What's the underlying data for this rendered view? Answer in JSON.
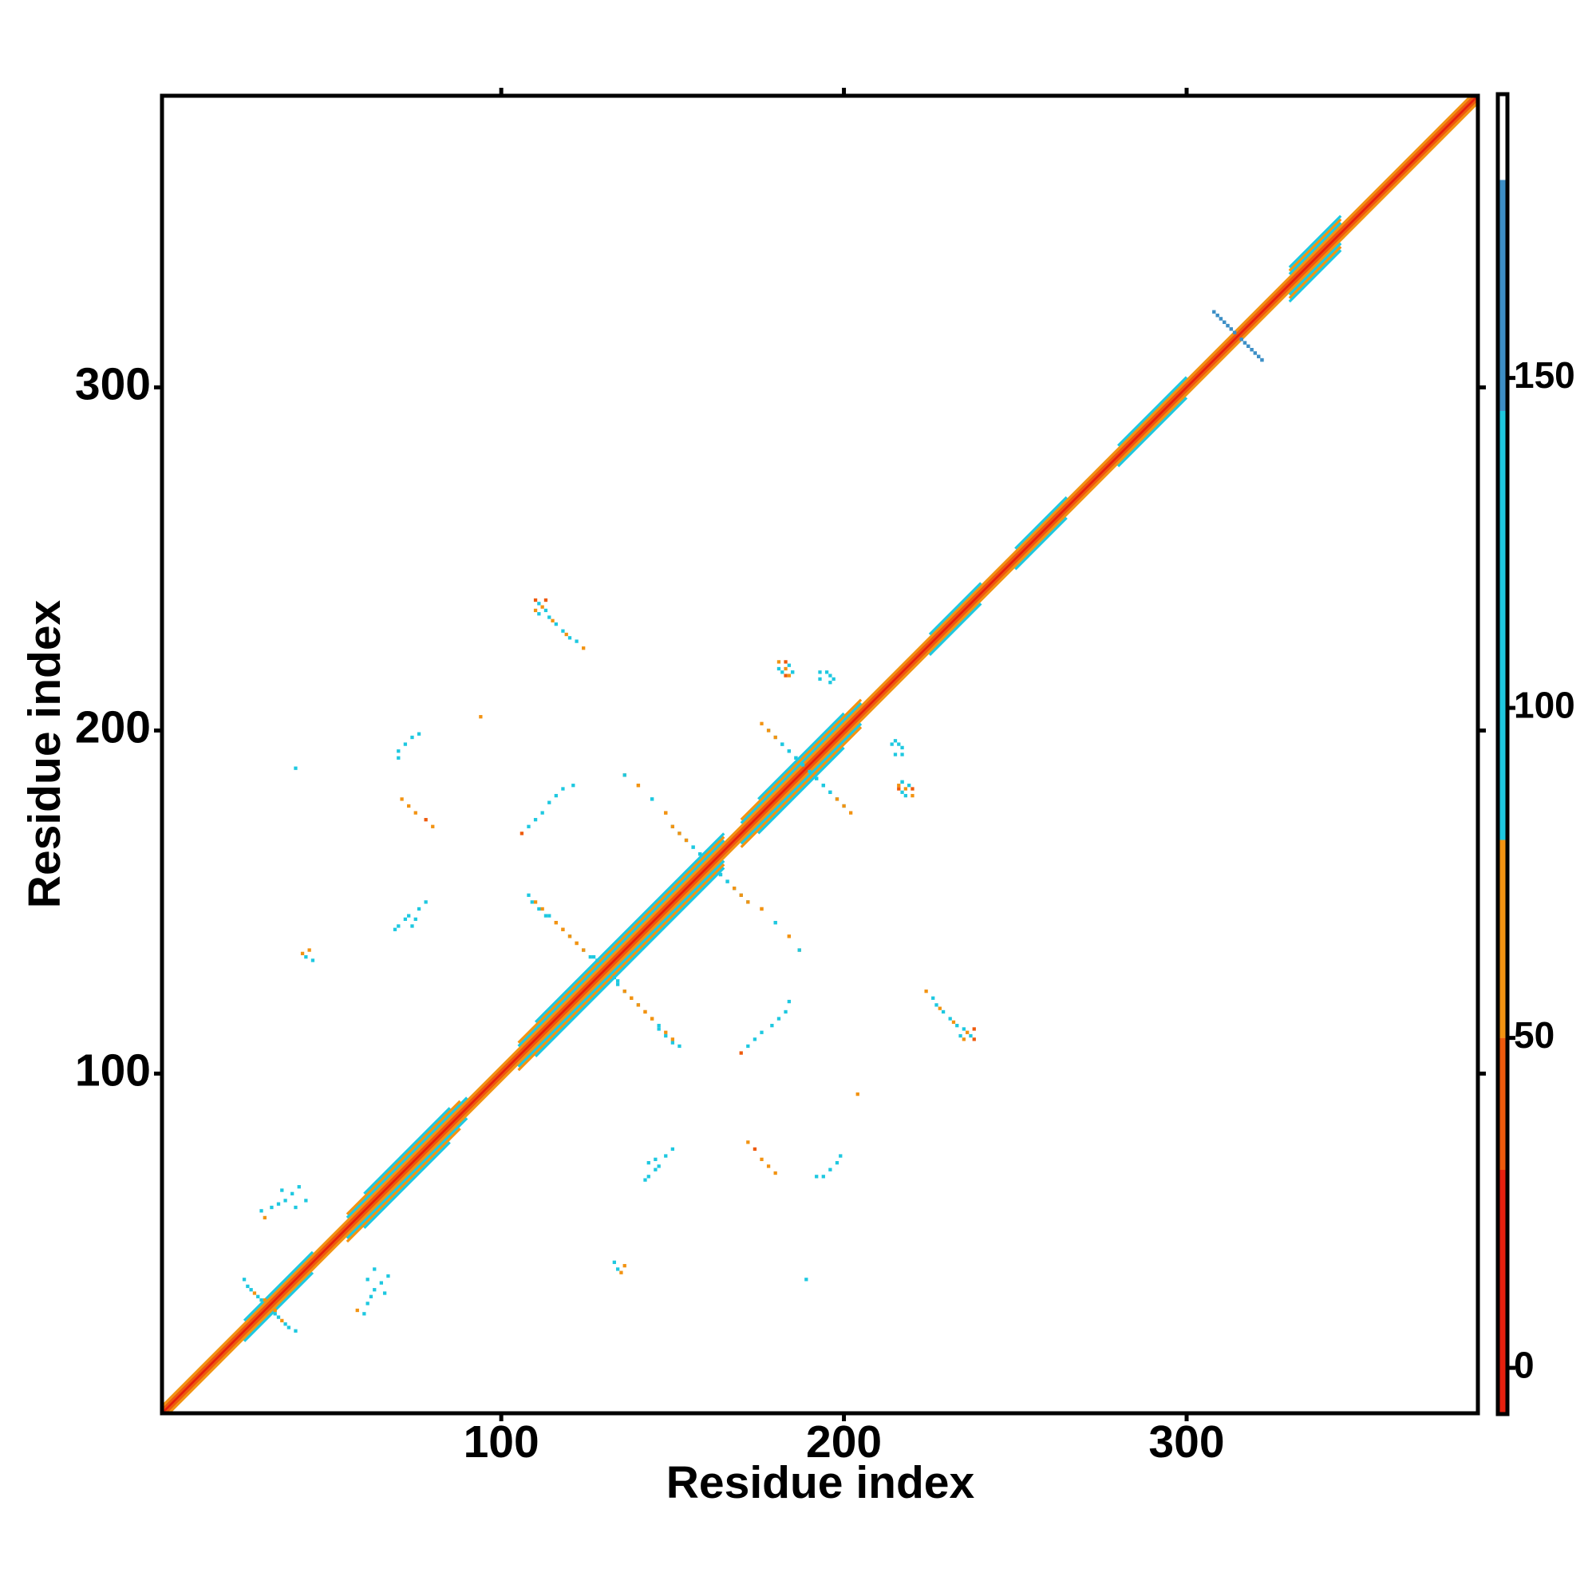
{
  "chart_data": {
    "type": "heatmap",
    "x_label": "Residue index",
    "y_label": "Residue index",
    "xlim": [
      1,
      385
    ],
    "ylim": [
      1,
      385
    ],
    "xticks": [
      100,
      200,
      300
    ],
    "yticks": [
      100,
      200,
      300
    ],
    "colorbar": {
      "lim": [
        -7,
        193
      ],
      "ticks": [
        0,
        50,
        100,
        150
      ],
      "bands": [
        {
          "from": -7,
          "to": 30,
          "color": "#e5200e"
        },
        {
          "from": 30,
          "to": 50,
          "color": "#ee5a0c"
        },
        {
          "from": 50,
          "to": 80,
          "color": "#f29312"
        },
        {
          "from": 80,
          "to": 145,
          "color": "#1ec8e0"
        },
        {
          "from": 145,
          "to": 180,
          "color": "#3d8fc6"
        },
        {
          "from": 180,
          "to": 193,
          "color": "#ffffff"
        }
      ]
    },
    "band": [
      {
        "offset": 0,
        "start": 1,
        "end": 385,
        "value": 5
      },
      {
        "offset": 1,
        "start": 1,
        "end": 384,
        "value": 40
      },
      {
        "offset": -1,
        "start": 2,
        "end": 385,
        "value": 40
      },
      {
        "offset": 2,
        "start": 1,
        "end": 383,
        "value": 60
      },
      {
        "offset": -2,
        "start": 3,
        "end": 385,
        "value": 60
      },
      {
        "offset": 3,
        "start": 25,
        "end": 45,
        "value": 100
      },
      {
        "offset": -3,
        "start": 25,
        "end": 45,
        "value": 100
      },
      {
        "offset": 3,
        "start": 55,
        "end": 90,
        "value": 100
      },
      {
        "offset": -3,
        "start": 55,
        "end": 90,
        "value": 100
      },
      {
        "offset": 3,
        "start": 105,
        "end": 165,
        "value": 100
      },
      {
        "offset": -3,
        "start": 105,
        "end": 165,
        "value": 100
      },
      {
        "offset": 3,
        "start": 170,
        "end": 205,
        "value": 100
      },
      {
        "offset": -3,
        "start": 170,
        "end": 205,
        "value": 100
      },
      {
        "offset": 3,
        "start": 225,
        "end": 240,
        "value": 100
      },
      {
        "offset": -3,
        "start": 225,
        "end": 240,
        "value": 100
      },
      {
        "offset": 3,
        "start": 250,
        "end": 265,
        "value": 100
      },
      {
        "offset": -3,
        "start": 250,
        "end": 265,
        "value": 100
      },
      {
        "offset": 3,
        "start": 280,
        "end": 300,
        "value": 100
      },
      {
        "offset": -3,
        "start": 280,
        "end": 300,
        "value": 100
      },
      {
        "offset": 3,
        "start": 330,
        "end": 345,
        "value": 100
      },
      {
        "offset": -3,
        "start": 330,
        "end": 345,
        "value": 100
      },
      {
        "offset": 4,
        "start": 55,
        "end": 88,
        "value": 60
      },
      {
        "offset": -4,
        "start": 55,
        "end": 88,
        "value": 60
      },
      {
        "offset": 4,
        "start": 105,
        "end": 165,
        "value": 60
      },
      {
        "offset": -4,
        "start": 105,
        "end": 165,
        "value": 60
      },
      {
        "offset": 4,
        "start": 170,
        "end": 205,
        "value": 60
      },
      {
        "offset": -4,
        "start": 170,
        "end": 205,
        "value": 60
      },
      {
        "offset": 4,
        "start": 330,
        "end": 345,
        "value": 60
      },
      {
        "offset": -4,
        "start": 330,
        "end": 345,
        "value": 60
      },
      {
        "offset": 5,
        "start": 60,
        "end": 85,
        "value": 100
      },
      {
        "offset": -5,
        "start": 60,
        "end": 85,
        "value": 100
      },
      {
        "offset": 5,
        "start": 110,
        "end": 165,
        "value": 100
      },
      {
        "offset": -5,
        "start": 110,
        "end": 165,
        "value": 100
      },
      {
        "offset": 5,
        "start": 175,
        "end": 200,
        "value": 100
      },
      {
        "offset": -5,
        "start": 175,
        "end": 200,
        "value": 100
      },
      {
        "offset": 5,
        "start": 330,
        "end": 345,
        "value": 100
      },
      {
        "offset": -5,
        "start": 330,
        "end": 345,
        "value": 100
      }
    ],
    "contacts": [
      [
        110,
        238,
        45
      ],
      [
        111,
        237,
        100
      ],
      [
        112,
        236,
        60
      ],
      [
        113,
        235,
        100
      ],
      [
        114,
        233,
        100
      ],
      [
        115,
        232,
        60
      ],
      [
        116,
        231,
        100
      ],
      [
        118,
        229,
        100
      ],
      [
        119,
        228,
        60
      ],
      [
        120,
        227,
        100
      ],
      [
        122,
        226,
        100
      ],
      [
        124,
        224,
        60
      ],
      [
        111,
        234,
        100
      ],
      [
        110,
        235,
        60
      ],
      [
        113,
        238,
        30
      ],
      [
        181,
        220,
        60
      ],
      [
        182,
        217,
        100
      ],
      [
        183,
        216,
        30
      ],
      [
        184,
        216,
        60
      ],
      [
        185,
        217,
        100
      ],
      [
        181,
        218,
        100
      ],
      [
        195,
        217,
        100
      ],
      [
        196,
        216,
        100
      ],
      [
        193,
        217,
        100
      ],
      [
        176,
        202,
        60
      ],
      [
        178,
        200,
        100
      ],
      [
        180,
        198,
        100
      ],
      [
        182,
        196,
        100
      ],
      [
        184,
        194,
        100
      ],
      [
        186,
        192,
        100
      ],
      [
        190,
        188,
        100
      ],
      [
        192,
        186,
        100
      ],
      [
        194,
        184,
        100
      ],
      [
        196,
        182,
        100
      ],
      [
        198,
        180,
        60
      ],
      [
        200,
        178,
        60
      ],
      [
        150,
        172,
        100
      ],
      [
        152,
        170,
        100
      ],
      [
        154,
        168,
        100
      ],
      [
        156,
        166,
        100
      ],
      [
        158,
        164,
        100
      ],
      [
        164,
        158,
        100
      ],
      [
        166,
        156,
        100
      ],
      [
        168,
        154,
        60
      ],
      [
        170,
        152,
        60
      ],
      [
        172,
        150,
        60
      ],
      [
        136,
        187,
        60
      ],
      [
        140,
        184,
        60
      ],
      [
        144,
        180,
        100
      ],
      [
        148,
        176,
        60
      ],
      [
        176,
        148,
        60
      ],
      [
        180,
        144,
        100
      ],
      [
        184,
        140,
        60
      ],
      [
        187,
        136,
        100
      ],
      [
        108,
        152,
        100
      ],
      [
        110,
        150,
        60
      ],
      [
        112,
        148,
        60
      ],
      [
        114,
        146,
        100
      ],
      [
        116,
        144,
        60
      ],
      [
        118,
        142,
        60
      ],
      [
        120,
        140,
        100
      ],
      [
        122,
        138,
        60
      ],
      [
        124,
        136,
        100
      ],
      [
        126,
        134,
        100
      ],
      [
        128,
        133,
        100
      ],
      [
        134,
        127,
        100
      ],
      [
        136,
        124,
        60
      ],
      [
        138,
        122,
        60
      ],
      [
        140,
        120,
        60
      ],
      [
        142,
        118,
        60
      ],
      [
        144,
        116,
        60
      ],
      [
        146,
        113,
        100
      ],
      [
        148,
        111,
        100
      ],
      [
        150,
        109,
        100
      ],
      [
        71,
        180,
        60
      ],
      [
        73,
        178,
        60
      ],
      [
        75,
        176,
        60
      ],
      [
        78,
        174,
        45
      ],
      [
        80,
        172,
        60
      ],
      [
        70,
        194,
        100
      ],
      [
        72,
        196,
        100
      ],
      [
        74,
        198,
        100
      ],
      [
        76,
        199,
        100
      ],
      [
        70,
        192,
        100
      ],
      [
        40,
        189,
        100
      ],
      [
        94,
        204,
        60
      ],
      [
        69,
        142,
        100
      ],
      [
        70,
        143,
        100
      ],
      [
        72,
        145,
        100
      ],
      [
        73,
        146,
        100
      ],
      [
        75,
        145,
        100
      ],
      [
        76,
        148,
        100
      ],
      [
        78,
        150,
        100
      ],
      [
        74,
        143,
        100
      ],
      [
        42,
        135,
        60
      ],
      [
        43,
        134,
        100
      ],
      [
        45,
        133,
        100
      ],
      [
        44,
        136,
        60
      ],
      [
        106,
        170,
        30
      ],
      [
        108,
        172,
        100
      ],
      [
        110,
        174,
        100
      ],
      [
        112,
        176,
        100
      ],
      [
        114,
        179,
        100
      ],
      [
        116,
        181,
        100
      ],
      [
        118,
        183,
        100
      ],
      [
        121,
        184,
        100
      ],
      [
        30,
        60,
        100
      ],
      [
        31,
        58,
        60
      ],
      [
        33,
        61,
        100
      ],
      [
        35,
        62,
        100
      ],
      [
        37,
        63,
        100
      ],
      [
        39,
        65,
        100
      ],
      [
        41,
        67,
        100
      ],
      [
        43,
        63,
        100
      ],
      [
        36,
        66,
        100
      ],
      [
        40,
        61,
        100
      ],
      [
        27,
        37,
        100
      ],
      [
        29,
        35,
        100
      ],
      [
        31,
        34,
        60
      ],
      [
        34,
        30,
        100
      ],
      [
        36,
        28,
        60
      ],
      [
        38,
        26,
        100
      ],
      [
        40,
        25,
        100
      ],
      [
        308,
        322,
        160
      ],
      [
        309,
        321,
        160
      ],
      [
        310,
        320,
        160
      ],
      [
        311,
        319,
        160
      ],
      [
        312,
        318,
        160
      ],
      [
        313,
        317,
        160
      ],
      [
        314,
        316,
        160
      ],
      [
        316,
        314,
        160
      ],
      [
        317,
        313,
        160
      ],
      [
        318,
        312,
        160
      ],
      [
        319,
        311,
        160
      ],
      [
        320,
        310,
        160
      ],
      [
        321,
        309,
        160
      ],
      [
        322,
        308,
        160
      ],
      [
        214,
        196,
        100
      ],
      [
        215,
        197,
        100
      ],
      [
        215,
        193,
        100
      ],
      [
        217,
        185,
        100
      ],
      [
        218,
        183,
        60
      ],
      [
        219,
        184,
        100
      ],
      [
        220,
        183,
        45
      ]
    ]
  }
}
